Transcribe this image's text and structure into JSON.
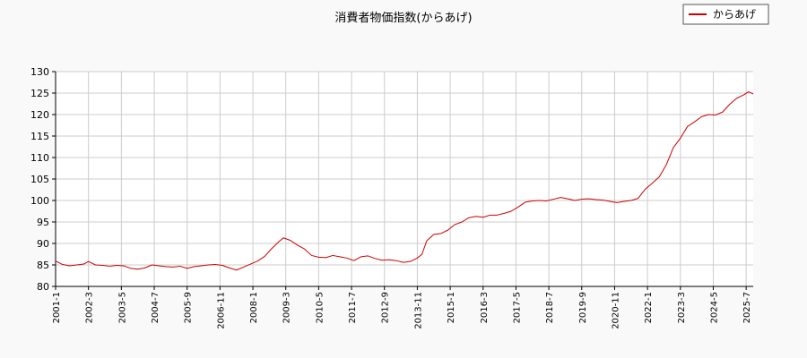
{
  "chart_data": {
    "type": "line",
    "title": "消費者物価指数(からあげ)",
    "xlabel": "",
    "ylabel": "",
    "ylim": [
      80,
      130
    ],
    "yticks": [
      80,
      85,
      90,
      95,
      100,
      105,
      110,
      115,
      120,
      125,
      130
    ],
    "x_range": [
      "2001-01",
      "2025-10"
    ],
    "xticks": [
      "2001-1",
      "2002-3",
      "2003-5",
      "2004-7",
      "2005-9",
      "2006-11",
      "2008-1",
      "2009-3",
      "2010-5",
      "2011-7",
      "2012-9",
      "2013-11",
      "2015-1",
      "2016-3",
      "2017-5",
      "2018-7",
      "2019-9",
      "2020-11",
      "2022-1",
      "2023-3",
      "2024-5",
      "2025-7"
    ],
    "grid": true,
    "legend": "top-right",
    "colors": {
      "line": "#cc0000",
      "grid": "#cccccc",
      "axis": "#000000",
      "plot_bg": "#ffffff",
      "page_bg": "#f9f9f9"
    },
    "series": [
      {
        "name": "からあげ",
        "points": [
          [
            "2001-01",
            85.9
          ],
          [
            "2001-04",
            85.1
          ],
          [
            "2001-07",
            84.8
          ],
          [
            "2001-10",
            85.0
          ],
          [
            "2002-01",
            85.2
          ],
          [
            "2002-03",
            85.8
          ],
          [
            "2002-06",
            85.0
          ],
          [
            "2002-09",
            84.9
          ],
          [
            "2002-12",
            84.7
          ],
          [
            "2003-03",
            84.9
          ],
          [
            "2003-06",
            84.8
          ],
          [
            "2003-09",
            84.2
          ],
          [
            "2003-12",
            84.0
          ],
          [
            "2004-03",
            84.3
          ],
          [
            "2004-06",
            85.0
          ],
          [
            "2004-09",
            84.8
          ],
          [
            "2004-12",
            84.6
          ],
          [
            "2005-03",
            84.5
          ],
          [
            "2005-06",
            84.7
          ],
          [
            "2005-09",
            84.2
          ],
          [
            "2005-12",
            84.6
          ],
          [
            "2006-03",
            84.8
          ],
          [
            "2006-06",
            85.0
          ],
          [
            "2006-09",
            85.1
          ],
          [
            "2006-12",
            84.9
          ],
          [
            "2007-03",
            84.3
          ],
          [
            "2007-06",
            83.8
          ],
          [
            "2007-09",
            84.5
          ],
          [
            "2007-12",
            85.2
          ],
          [
            "2008-03",
            85.9
          ],
          [
            "2008-06",
            87.0
          ],
          [
            "2008-09",
            88.8
          ],
          [
            "2008-12",
            90.4
          ],
          [
            "2009-02",
            91.3
          ],
          [
            "2009-05",
            90.7
          ],
          [
            "2009-08",
            89.6
          ],
          [
            "2009-11",
            88.7
          ],
          [
            "2010-02",
            87.2
          ],
          [
            "2010-05",
            86.8
          ],
          [
            "2010-08",
            86.7
          ],
          [
            "2010-11",
            87.2
          ],
          [
            "2011-02",
            86.9
          ],
          [
            "2011-05",
            86.6
          ],
          [
            "2011-08",
            86.0
          ],
          [
            "2011-11",
            86.9
          ],
          [
            "2012-02",
            87.1
          ],
          [
            "2012-05",
            86.5
          ],
          [
            "2012-08",
            86.1
          ],
          [
            "2012-11",
            86.2
          ],
          [
            "2013-02",
            86.0
          ],
          [
            "2013-05",
            85.6
          ],
          [
            "2013-08",
            85.8
          ],
          [
            "2013-11",
            86.6
          ],
          [
            "2014-01",
            87.5
          ],
          [
            "2014-03",
            90.6
          ],
          [
            "2014-06",
            92.1
          ],
          [
            "2014-09",
            92.3
          ],
          [
            "2014-12",
            93.1
          ],
          [
            "2015-03",
            94.4
          ],
          [
            "2015-06",
            95.0
          ],
          [
            "2015-09",
            96.0
          ],
          [
            "2015-12",
            96.3
          ],
          [
            "2016-03",
            96.1
          ],
          [
            "2016-06",
            96.6
          ],
          [
            "2016-09",
            96.6
          ],
          [
            "2016-12",
            97.0
          ],
          [
            "2017-03",
            97.5
          ],
          [
            "2017-06",
            98.5
          ],
          [
            "2017-09",
            99.6
          ],
          [
            "2017-12",
            99.9
          ],
          [
            "2018-03",
            100.0
          ],
          [
            "2018-06",
            99.9
          ],
          [
            "2018-09",
            100.3
          ],
          [
            "2018-12",
            100.7
          ],
          [
            "2019-03",
            100.4
          ],
          [
            "2019-06",
            100.0
          ],
          [
            "2019-09",
            100.3
          ],
          [
            "2019-12",
            100.4
          ],
          [
            "2020-03",
            100.2
          ],
          [
            "2020-06",
            100.1
          ],
          [
            "2020-09",
            99.8
          ],
          [
            "2020-12",
            99.5
          ],
          [
            "2021-03",
            99.8
          ],
          [
            "2021-06",
            100.0
          ],
          [
            "2021-09",
            100.5
          ],
          [
            "2021-12",
            102.6
          ],
          [
            "2022-03",
            104.0
          ],
          [
            "2022-06",
            105.5
          ],
          [
            "2022-09",
            108.3
          ],
          [
            "2022-12",
            112.3
          ],
          [
            "2023-03",
            114.5
          ],
          [
            "2023-06",
            117.2
          ],
          [
            "2023-09",
            118.3
          ],
          [
            "2023-12",
            119.5
          ],
          [
            "2024-03",
            120.0
          ],
          [
            "2024-06",
            119.9
          ],
          [
            "2024-09",
            120.6
          ],
          [
            "2024-12",
            122.4
          ],
          [
            "2025-03",
            123.8
          ],
          [
            "2025-06",
            124.6
          ],
          [
            "2025-08",
            125.3
          ],
          [
            "2025-10",
            124.8
          ]
        ]
      }
    ]
  }
}
